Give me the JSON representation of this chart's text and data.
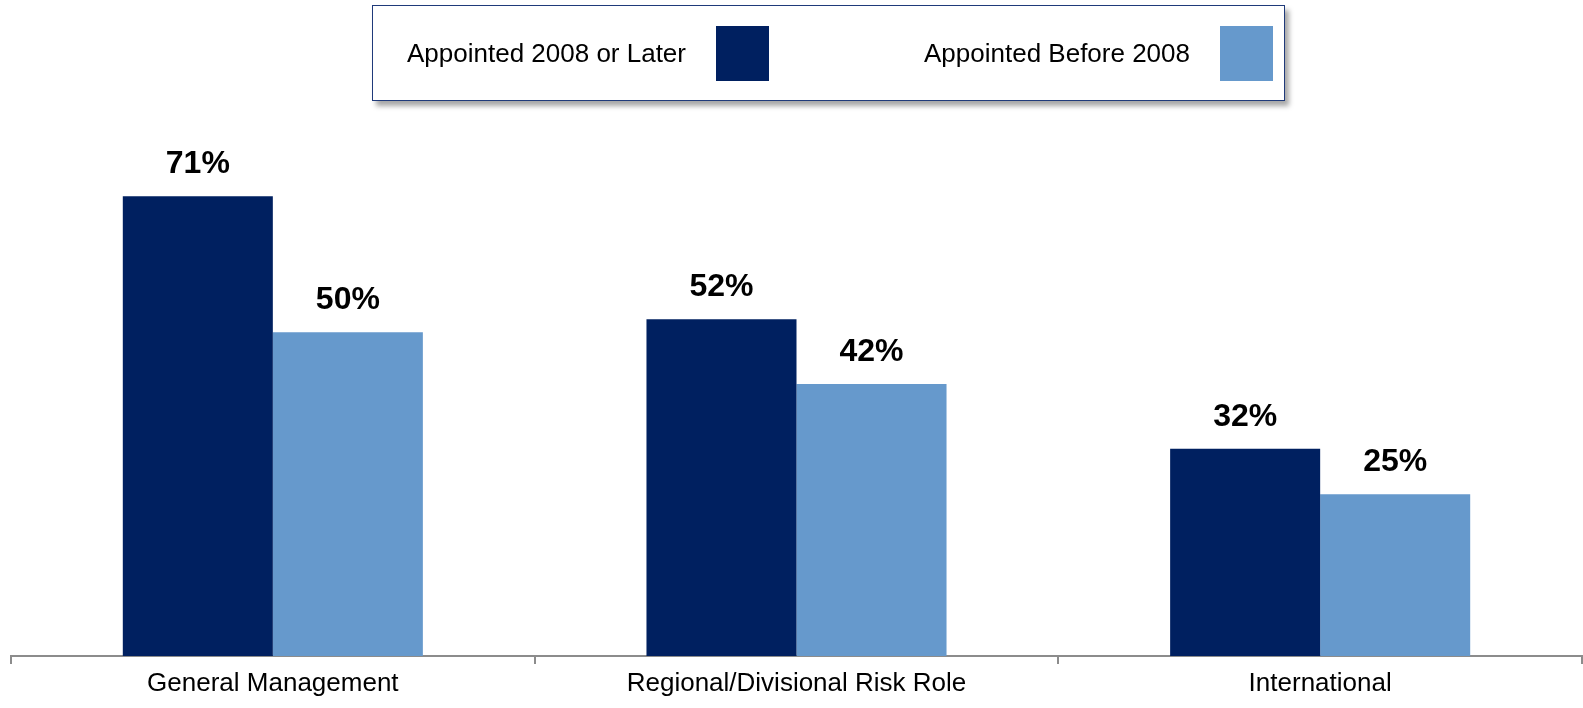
{
  "chart_data": {
    "type": "bar",
    "categories": [
      "General Management",
      "Regional/Divisional Risk Role",
      "International"
    ],
    "series": [
      {
        "name": "Appointed 2008 or Later",
        "color": "#002060",
        "values": [
          71,
          52,
          32
        ],
        "value_labels": [
          "71%",
          "52%",
          "32%"
        ]
      },
      {
        "name": "Appointed Before 2008",
        "color": "#6699cc",
        "values": [
          50,
          42,
          25
        ],
        "value_labels": [
          "50%",
          "42%",
          "25%"
        ]
      }
    ],
    "legend": "top",
    "tick_labels": "x"
  }
}
